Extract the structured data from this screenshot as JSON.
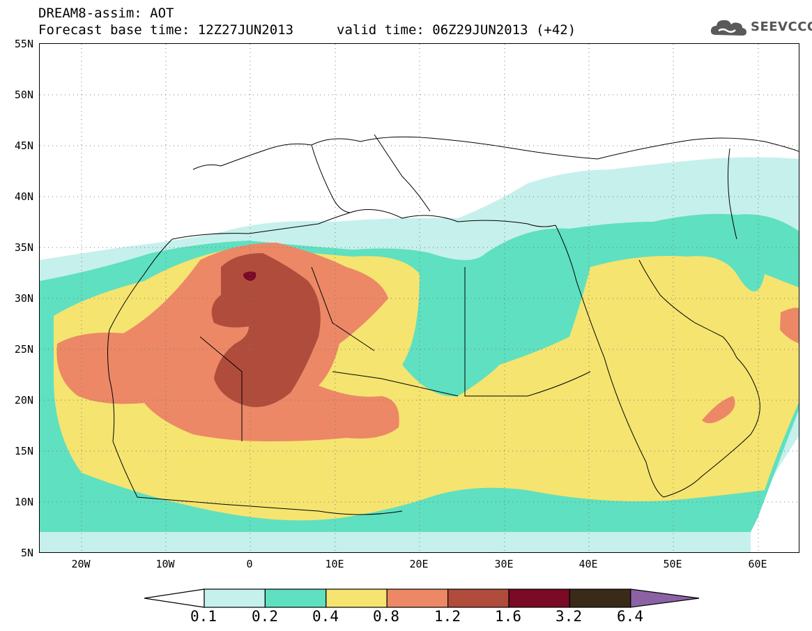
{
  "header": {
    "title": "DREAM8-assim: AOT",
    "base_time": "Forecast base time: 12Z27JUN2013",
    "valid_time": "valid time: 06Z29JUN2013 (+42)"
  },
  "logo": {
    "text": "SEEVCCC",
    "icon": "cloud-icon"
  },
  "map": {
    "lat_labels": [
      "55N",
      "50N",
      "45N",
      "40N",
      "35N",
      "30N",
      "25N",
      "20N",
      "15N",
      "10N",
      "5N"
    ],
    "lon_labels": [
      "20W",
      "10W",
      "0",
      "10E",
      "20E",
      "30E",
      "40E",
      "50E",
      "60E"
    ],
    "lon_range": [
      -25,
      65
    ],
    "lat_range": [
      5,
      55
    ]
  },
  "colorbar": {
    "levels": [
      "0.1",
      "0.2",
      "0.4",
      "0.8",
      "1.2",
      "1.6",
      "3.2",
      "6.4"
    ],
    "colors": [
      "#ffffff",
      "#c6f0ec",
      "#5fe0c0",
      "#f5e470",
      "#ec8866",
      "#b04c3c",
      "#7a0a26",
      "#3a2a18",
      "#8c62a4"
    ]
  }
}
